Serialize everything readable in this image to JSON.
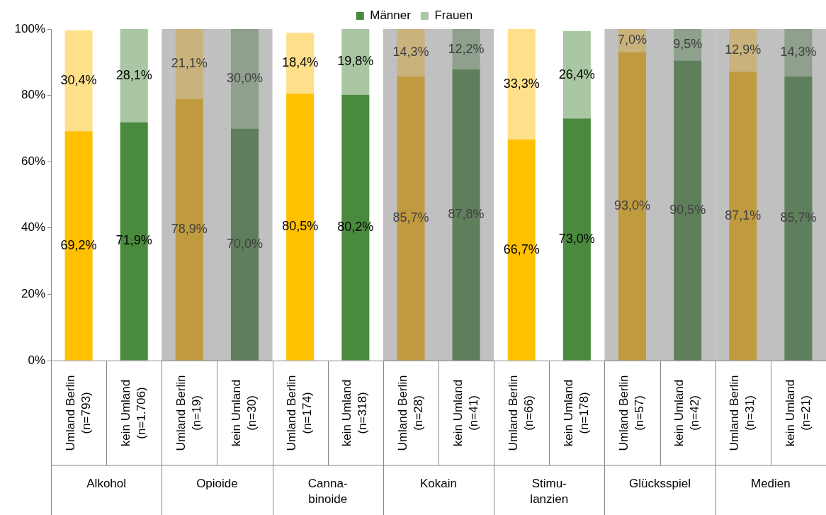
{
  "chart_data": {
    "type": "bar",
    "stacked": true,
    "categories": [
      "Umland Berlin\n(n=793)",
      "kein Umland\n(n=1.706)",
      "Umland Berlin\n(n=19)",
      "kein Umland\n(n=30)",
      "Umland Berlin\n(n=174)",
      "kein Umland\n(n=318)",
      "Umland Berlin\n(n=28)",
      "kein Umland\n(n=41)",
      "Umland Berlin\n(n=66)",
      "kein Umland\n(n=178)",
      "Umland Berlin\n(n=57)",
      "kein Umland\n(n=42)",
      "Umland Berlin\n(n=31)",
      "kein Umland\n(n=21)"
    ],
    "series": [
      {
        "name": "Männer",
        "color": "#4a8a3f",
        "colors": [
          "#ffc000",
          "#4a8a3f",
          "#c09a3e",
          "#5f7f5c",
          "#ffc000",
          "#4a8a3f",
          "#c09a3e",
          "#5f7f5c",
          "#ffc000",
          "#4a8a3f",
          "#c09a3e",
          "#5f7f5c",
          "#c09a3e",
          "#5f7f5c"
        ],
        "values": [
          69.2,
          71.9,
          78.9,
          70.0,
          80.5,
          80.2,
          85.7,
          87.8,
          66.7,
          73.0,
          93.0,
          90.5,
          87.1,
          85.7
        ],
        "value_labels": [
          "69,2%",
          "71,9%",
          "78,9%",
          "70,0%",
          "80,5%",
          "80,2%",
          "85,7%",
          "87,8%",
          "66,7%",
          "73,0%",
          "93,0%",
          "90,5%",
          "87,1%",
          "85,7%"
        ]
      },
      {
        "name": "Frauen",
        "color": "#a9c7a2",
        "colors": [
          "#ffe08a",
          "#a9c7a2",
          "#c9b27c",
          "#8fa08d",
          "#ffe08a",
          "#a9c7a2",
          "#c9b27c",
          "#8fa08d",
          "#ffe08a",
          "#a9c7a2",
          "#c9b27c",
          "#8fa08d",
          "#c9b27c",
          "#8fa08d"
        ],
        "values": [
          30.4,
          28.1,
          21.1,
          30.0,
          18.4,
          19.8,
          14.3,
          12.2,
          33.3,
          26.4,
          7.0,
          9.5,
          12.9,
          14.3
        ],
        "value_labels": [
          "30,4%",
          "28,1%",
          "21,1%",
          "30,0%",
          "18,4%",
          "19,8%",
          "14,3%",
          "12,2%",
          "33,3%",
          "26,4%",
          "7,0%",
          "9,5%",
          "12,9%",
          "14,3%"
        ]
      }
    ],
    "ylim": [
      0,
      100
    ],
    "yticks": [
      {
        "value": 0,
        "label": "0%"
      },
      {
        "value": 20,
        "label": "20%"
      },
      {
        "value": 40,
        "label": "40%"
      },
      {
        "value": 60,
        "label": "60%"
      },
      {
        "value": 80,
        "label": "80%"
      },
      {
        "value": 100,
        "label": "100%"
      }
    ],
    "bands": [
      {
        "axis": "x",
        "from": "Umland Berlin\n(n=19)",
        "to": "kein Umland\n(n=30)",
        "color": "#c0c0c0"
      },
      {
        "axis": "x",
        "from": "Umland Berlin\n(n=28)",
        "to": "kein Umland\n(n=41)",
        "color": "#c0c0c0"
      },
      {
        "axis": "x",
        "from": "Umland Berlin\n(n=57)",
        "to": "kein Umland\n(n=42)",
        "color": "#c0c0c0"
      },
      {
        "axis": "x",
        "from": "Umland Berlin\n(n=31)",
        "to": "kein Umland\n(n=21)",
        "color": "#c0c0c0"
      }
    ],
    "annotations": [
      "Alkohol",
      "Opioide",
      "Canna-\nbinoide",
      "Kokain",
      "Stimu-\nlanzien",
      "Glücksspiel",
      "Medien"
    ],
    "legend": "top"
  }
}
